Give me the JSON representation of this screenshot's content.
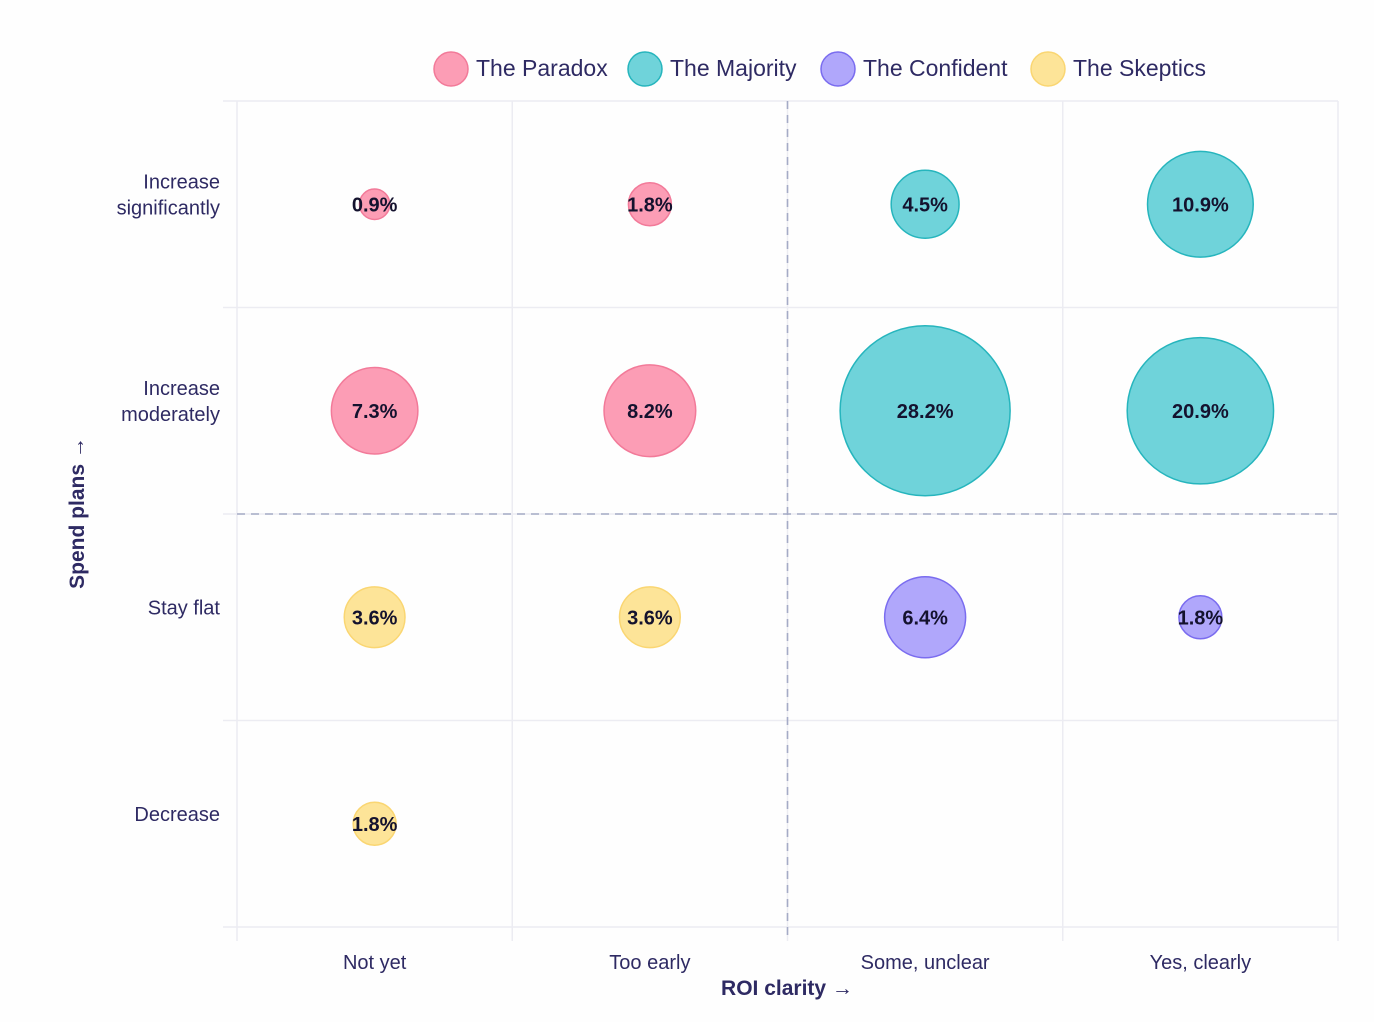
{
  "chart_data": {
    "type": "bubble",
    "title": "",
    "xlabel": "ROI clarity →",
    "ylabel": "Spend plans →",
    "x_categories": [
      "Not yet",
      "Too early",
      "Some, unclear",
      "Yes, clearly"
    ],
    "y_categories": [
      "Increase significantly",
      "Increase moderately",
      "Stay flat",
      "Decrease"
    ],
    "y_tick_lines": [
      [
        "Increase",
        "significantly"
      ],
      [
        "Increase",
        "moderately"
      ],
      [
        "Stay flat"
      ],
      [
        "Decrease"
      ]
    ],
    "legend_position": "top-center",
    "grid": true,
    "dividers": {
      "x_between": [
        "Too early",
        "Some, unclear"
      ],
      "y_between": [
        "Increase moderately",
        "Stay flat"
      ]
    },
    "series": [
      {
        "name": "The Paradox",
        "color": "#fc9db5",
        "stroke": "#f27a99",
        "points": [
          {
            "x": "Not yet",
            "y": "Increase significantly",
            "value": 0.9,
            "label": "0.9%"
          },
          {
            "x": "Too early",
            "y": "Increase significantly",
            "value": 1.8,
            "label": "1.8%"
          },
          {
            "x": "Not yet",
            "y": "Increase moderately",
            "value": 7.3,
            "label": "7.3%"
          },
          {
            "x": "Too early",
            "y": "Increase moderately",
            "value": 8.2,
            "label": "8.2%"
          }
        ]
      },
      {
        "name": "The Majority",
        "color": "#6fd3da",
        "stroke": "#26b5bd",
        "points": [
          {
            "x": "Some, unclear",
            "y": "Increase significantly",
            "value": 4.5,
            "label": "4.5%"
          },
          {
            "x": "Yes, clearly",
            "y": "Increase significantly",
            "value": 10.9,
            "label": "10.9%"
          },
          {
            "x": "Some, unclear",
            "y": "Increase moderately",
            "value": 28.2,
            "label": "28.2%"
          },
          {
            "x": "Yes, clearly",
            "y": "Increase moderately",
            "value": 20.9,
            "label": "20.9%"
          }
        ]
      },
      {
        "name": "The Confident",
        "color": "#b0a7fb",
        "stroke": "#7a6cef",
        "points": [
          {
            "x": "Some, unclear",
            "y": "Stay flat",
            "value": 6.4,
            "label": "6.4%"
          },
          {
            "x": "Yes, clearly",
            "y": "Stay flat",
            "value": 1.8,
            "label": "1.8%"
          }
        ]
      },
      {
        "name": "The Skeptics",
        "color": "#fde498",
        "stroke": "#fad672",
        "points": [
          {
            "x": "Not yet",
            "y": "Stay flat",
            "value": 3.6,
            "label": "3.6%"
          },
          {
            "x": "Too early",
            "y": "Stay flat",
            "value": 3.6,
            "label": "3.6%"
          },
          {
            "x": "Not yet",
            "y": "Decrease",
            "value": 1.8,
            "label": "1.8%"
          }
        ]
      }
    ]
  }
}
